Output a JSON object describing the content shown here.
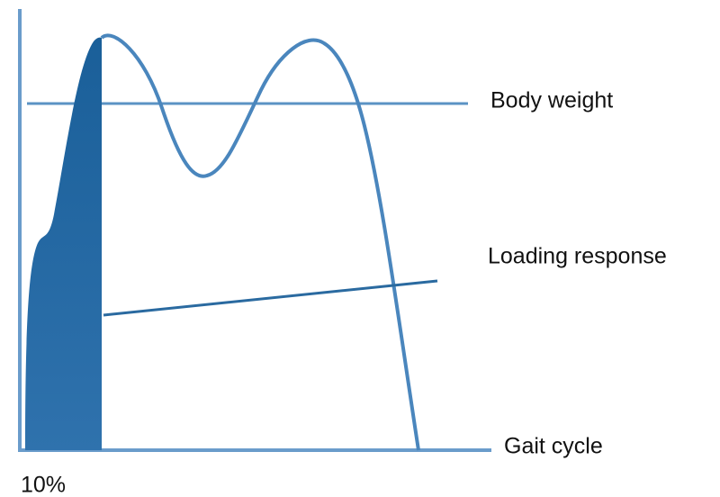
{
  "labels": {
    "body_weight": "Body weight",
    "loading_response": "Loading response",
    "gait_cycle": "Gait cycle",
    "percent": "10%"
  }
}
